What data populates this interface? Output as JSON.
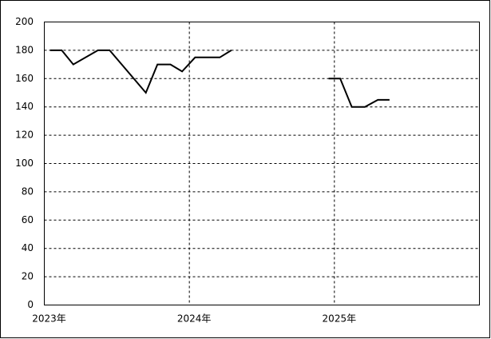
{
  "chart_data": {
    "type": "line",
    "x": [
      2023.04,
      2023.12,
      2023.2,
      2023.37,
      2023.45,
      2023.7,
      2023.78,
      2023.87,
      2023.95,
      2024.04,
      2024.21,
      2024.29,
      null,
      2024.96,
      2025.04,
      2025.12,
      2025.21,
      2025.3,
      2025.38
    ],
    "series": [
      {
        "color": "#000000",
        "values": [
          180,
          180,
          170,
          180,
          180,
          150,
          170,
          170,
          165,
          175,
          175,
          180,
          null,
          160,
          160,
          140,
          140,
          145,
          145
        ]
      }
    ],
    "xlim": [
      2023,
      2026
    ],
    "xticks": [
      {
        "value": 2023,
        "label": "2023年"
      },
      {
        "value": 2024,
        "label": "2024年"
      },
      {
        "value": 2025,
        "label": "2025年"
      }
    ],
    "ylim": [
      0,
      200
    ],
    "yticks": [
      0,
      20,
      40,
      60,
      80,
      100,
      120,
      140,
      160,
      180,
      200
    ],
    "grid": true
  }
}
